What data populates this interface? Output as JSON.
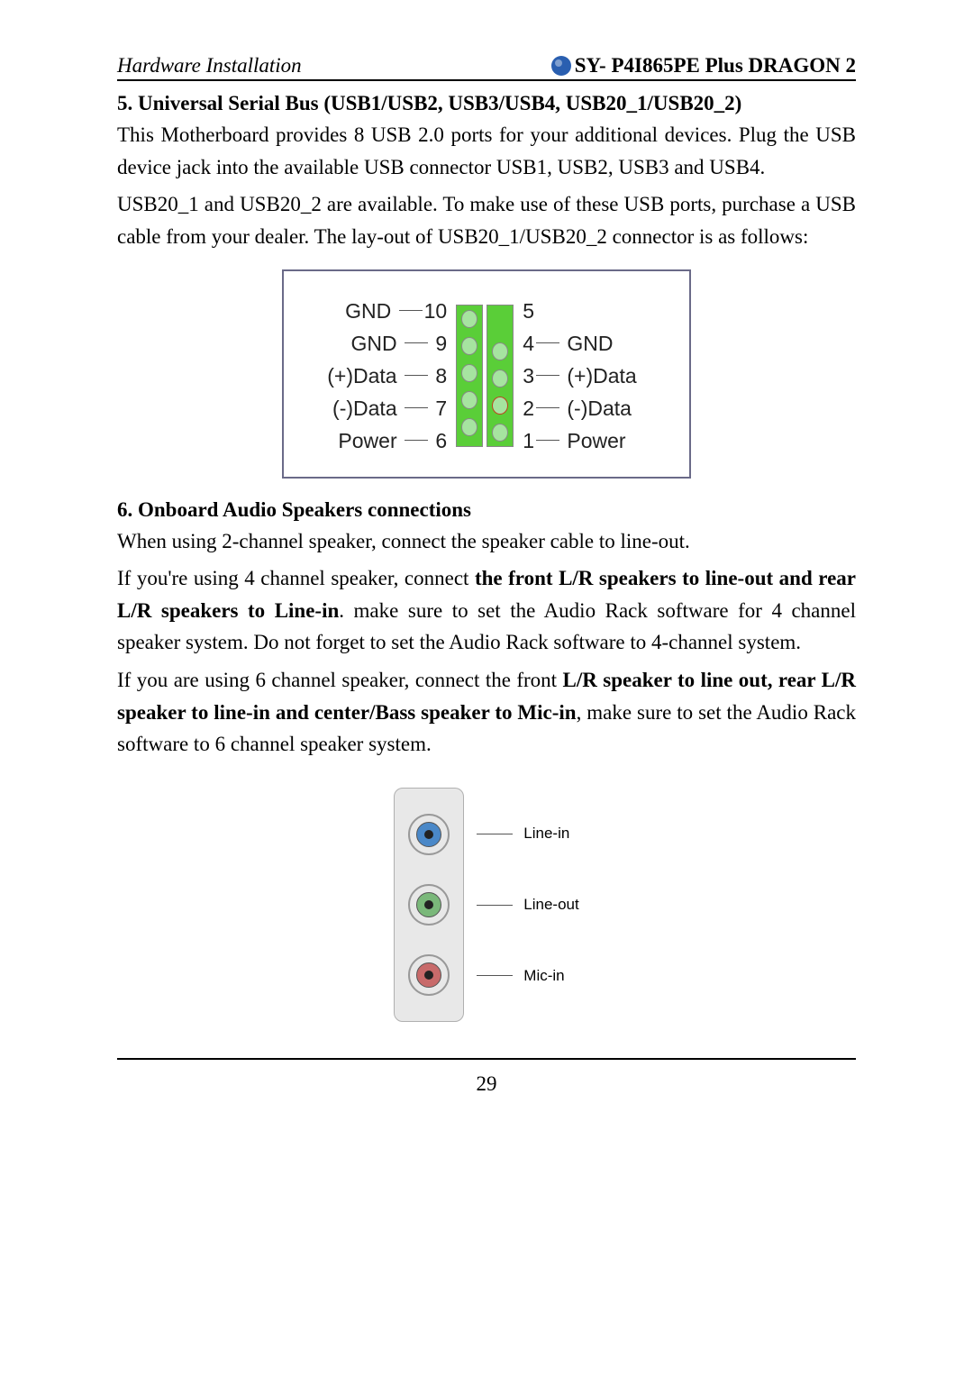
{
  "header": {
    "left": "Hardware Installation",
    "right": "SY- P4I865PE Plus DRAGON 2",
    "logo_color": "#2a5fb0"
  },
  "section5": {
    "title": "5. Universal Serial Bus (USB1/USB2, USB3/USB4, USB20_1/USB20_2)",
    "p1": "This Motherboard provides 8 USB 2.0 ports for your additional devices. Plug the USB device jack into the available USB connector USB1, USB2, USB3 and USB4.",
    "p2": "USB20_1 and USB20_2 are available. To make use of these USB ports, purchase a USB cable from your dealer. The lay-out of USB20_1/USB20_2 connector is as follows:"
  },
  "usb": {
    "left": [
      {
        "label": "GND",
        "pin": "10"
      },
      {
        "label": "GND",
        "pin": "9"
      },
      {
        "label": "(+)Data",
        "pin": "8"
      },
      {
        "label": "(-)Data",
        "pin": "7"
      },
      {
        "label": "Power",
        "pin": "6"
      }
    ],
    "right": [
      {
        "pin": "5",
        "label": ""
      },
      {
        "pin": "4",
        "label": "GND"
      },
      {
        "pin": "3",
        "label": "(+)Data"
      },
      {
        "pin": "2",
        "label": "(-)Data"
      },
      {
        "pin": "1",
        "label": "Power"
      }
    ],
    "colors": {
      "border": "#6a6a88",
      "col_bg": "#5ace38",
      "pin_bg": "#a6e4a0",
      "key_border": "#c04020"
    }
  },
  "section6": {
    "title": "6. Onboard Audio Speakers connections",
    "p1": "When using 2-channel speaker, connect the speaker cable to line-out.",
    "p2a": "If you're using 4 channel speaker, connect ",
    "p2b": "the front L/R speakers to line-out and rear L/R speakers to Line-in",
    "p2c": ". make sure to set the Audio Rack software for 4 channel speaker system. Do not forget to set the Audio Rack software to 4-channel system.",
    "p3a": "If you are using 6 channel speaker, connect the front ",
    "p3b": "L/R speaker to line out, rear L/R speaker to line-in and center/Bass speaker to Mic-in",
    "p3c": ", make sure to set the Audio Rack software to 6 channel speaker system."
  },
  "audio": {
    "jacks": [
      {
        "name": "line-in",
        "label": "Line-in",
        "color": "#4a88c8"
      },
      {
        "name": "line-out",
        "label": "Line-out",
        "color": "#7ab87a"
      },
      {
        "name": "mic-in",
        "label": "Mic-in",
        "color": "#c86a6a"
      }
    ],
    "panel_bg": "#e8e8e8"
  },
  "footer": {
    "page": "29"
  }
}
